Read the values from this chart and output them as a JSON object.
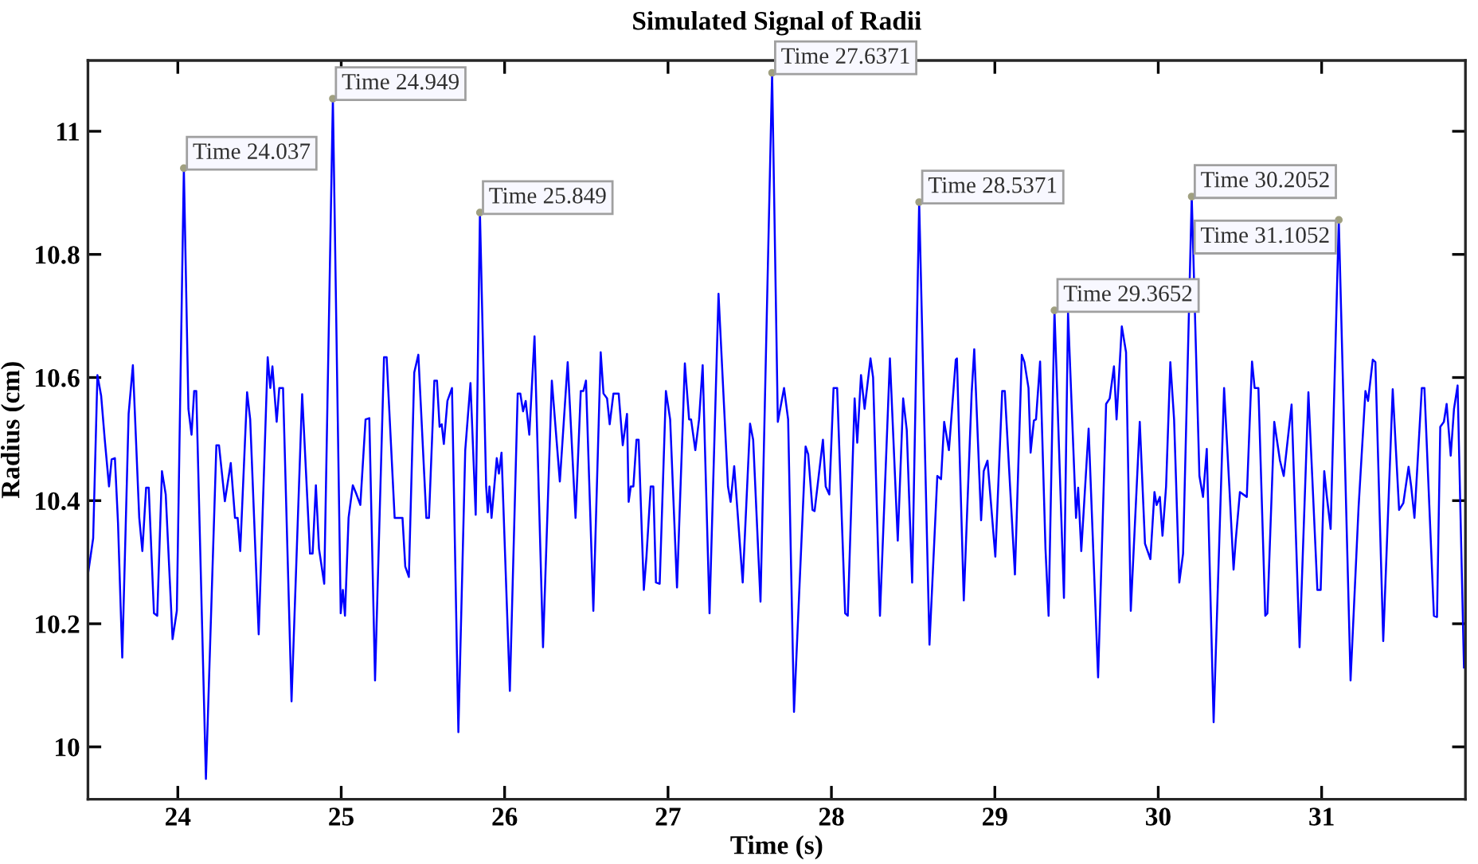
{
  "chart_data": {
    "type": "line",
    "title": "Simulated Signal of Radii",
    "xlabel": "Time (s)",
    "ylabel": "Radius (cm)",
    "xlim": [
      23.45,
      31.88
    ],
    "xticks": [
      24,
      25,
      26,
      27,
      28,
      29,
      30,
      31
    ],
    "ylim": [
      9.915,
      11.115
    ],
    "yticks": [
      10,
      10.2,
      10.4,
      10.6,
      10.8,
      11
    ],
    "grid": false,
    "marker": "none",
    "line_style": "solid",
    "series": [
      {
        "color": "#0000ff",
        "x": [
          23.45,
          23.482,
          23.508,
          23.531,
          23.553,
          23.579,
          23.595,
          23.615,
          23.634,
          23.66,
          23.699,
          23.725,
          23.764,
          23.783,
          23.806,
          23.822,
          23.854,
          23.874,
          23.903,
          23.926,
          23.968,
          23.994,
          24.037,
          24.065,
          24.084,
          24.1,
          24.113,
          24.172,
          24.236,
          24.252,
          24.288,
          24.324,
          24.35,
          24.366,
          24.382,
          24.424,
          24.443,
          24.495,
          24.55,
          24.566,
          24.579,
          24.605,
          24.621,
          24.644,
          24.696,
          24.761,
          24.809,
          24.825,
          24.845,
          24.864,
          24.896,
          24.949,
          24.997,
          25.01,
          25.023,
          25.045,
          25.071,
          25.091,
          25.117,
          25.149,
          25.172,
          25.207,
          25.262,
          25.278,
          25.327,
          25.375,
          25.392,
          25.414,
          25.447,
          25.472,
          25.521,
          25.537,
          25.57,
          25.586,
          25.602,
          25.615,
          25.628,
          25.65,
          25.678,
          25.717,
          25.759,
          25.791,
          25.823,
          25.849,
          25.887,
          25.897,
          25.907,
          25.92,
          25.952,
          25.965,
          25.981,
          26.032,
          26.08,
          26.096,
          26.113,
          26.129,
          26.151,
          26.183,
          26.235,
          26.289,
          26.338,
          26.386,
          26.434,
          26.466,
          26.482,
          26.498,
          26.543,
          26.588,
          26.605,
          26.627,
          26.643,
          26.666,
          26.698,
          26.723,
          26.749,
          26.759,
          26.772,
          26.788,
          26.807,
          26.82,
          26.852,
          26.868,
          26.894,
          26.91,
          26.926,
          26.949,
          26.987,
          27.013,
          27.055,
          27.103,
          27.129,
          27.141,
          27.167,
          27.19,
          27.212,
          27.254,
          27.309,
          27.367,
          27.383,
          27.405,
          27.457,
          27.502,
          27.521,
          27.566,
          27.637,
          27.672,
          27.71,
          27.735,
          27.771,
          27.842,
          27.858,
          27.884,
          27.897,
          27.948,
          27.965,
          27.987,
          28.013,
          28.035,
          28.084,
          28.1,
          28.142,
          28.158,
          28.181,
          28.203,
          28.239,
          28.255,
          28.297,
          28.358,
          28.406,
          28.439,
          28.461,
          28.494,
          28.537,
          28.6,
          28.648,
          28.671,
          28.69,
          28.719,
          28.761,
          28.768,
          28.81,
          28.858,
          28.874,
          28.916,
          28.932,
          28.955,
          29.003,
          29.045,
          29.061,
          29.123,
          29.165,
          29.181,
          29.206,
          29.219,
          29.239,
          29.252,
          29.277,
          29.31,
          29.329,
          29.365,
          29.423,
          29.448,
          29.497,
          29.51,
          29.529,
          29.574,
          29.632,
          29.681,
          29.703,
          29.729,
          29.745,
          29.777,
          29.803,
          29.832,
          29.887,
          29.919,
          29.952,
          29.977,
          29.99,
          30.01,
          30.026,
          30.048,
          30.074,
          30.097,
          30.129,
          30.152,
          30.205,
          30.252,
          30.274,
          30.297,
          30.339,
          30.403,
          30.435,
          30.461,
          30.474,
          30.5,
          30.542,
          30.574,
          30.59,
          30.613,
          30.655,
          30.668,
          30.71,
          30.745,
          30.768,
          30.816,
          30.865,
          30.919,
          30.974,
          30.994,
          31.016,
          31.032,
          31.055,
          31.105,
          31.177,
          31.226,
          31.268,
          31.284,
          31.313,
          31.329,
          31.377,
          31.435,
          31.474,
          31.5,
          31.532,
          31.548,
          31.568,
          31.613,
          31.629,
          31.687,
          31.706,
          31.726,
          31.748,
          31.765,
          31.79,
          31.81,
          31.832,
          31.871
        ],
        "values": [
          10.28,
          10.339,
          10.604,
          10.57,
          10.499,
          10.423,
          10.467,
          10.469,
          10.364,
          10.145,
          10.541,
          10.62,
          10.372,
          10.318,
          10.421,
          10.421,
          10.217,
          10.213,
          10.448,
          10.41,
          10.175,
          10.221,
          10.94,
          10.549,
          10.507,
          10.578,
          10.578,
          9.948,
          10.49,
          10.49,
          10.399,
          10.461,
          10.372,
          10.372,
          10.318,
          10.576,
          10.532,
          10.183,
          10.633,
          10.583,
          10.618,
          10.528,
          10.583,
          10.583,
          10.074,
          10.573,
          10.314,
          10.314,
          10.425,
          10.322,
          10.265,
          11.053,
          10.217,
          10.255,
          10.213,
          10.372,
          10.425,
          10.412,
          10.393,
          10.532,
          10.534,
          10.108,
          10.633,
          10.633,
          10.372,
          10.372,
          10.293,
          10.276,
          10.608,
          10.637,
          10.372,
          10.372,
          10.595,
          10.595,
          10.52,
          10.524,
          10.492,
          10.562,
          10.583,
          10.024,
          10.482,
          10.591,
          10.377,
          10.868,
          10.423,
          10.381,
          10.423,
          10.372,
          10.469,
          10.444,
          10.478,
          10.091,
          10.574,
          10.574,
          10.545,
          10.562,
          10.507,
          10.667,
          10.162,
          10.595,
          10.431,
          10.625,
          10.372,
          10.578,
          10.578,
          10.595,
          10.221,
          10.641,
          10.574,
          10.566,
          10.524,
          10.574,
          10.574,
          10.49,
          10.541,
          10.398,
          10.423,
          10.423,
          10.499,
          10.499,
          10.255,
          10.309,
          10.423,
          10.423,
          10.267,
          10.265,
          10.578,
          10.532,
          10.259,
          10.623,
          10.532,
          10.532,
          10.482,
          10.532,
          10.62,
          10.217,
          10.736,
          10.423,
          10.398,
          10.456,
          10.267,
          10.525,
          10.499,
          10.236,
          11.095,
          10.528,
          10.583,
          10.532,
          10.057,
          10.488,
          10.475,
          10.385,
          10.383,
          10.499,
          10.423,
          10.41,
          10.583,
          10.583,
          10.217,
          10.213,
          10.566,
          10.494,
          10.604,
          10.549,
          10.631,
          10.6,
          10.213,
          10.631,
          10.335,
          10.566,
          10.515,
          10.267,
          10.885,
          10.166,
          10.44,
          10.435,
          10.528,
          10.482,
          10.629,
          10.631,
          10.238,
          10.574,
          10.646,
          10.368,
          10.448,
          10.465,
          10.309,
          10.578,
          10.578,
          10.28,
          10.637,
          10.625,
          10.583,
          10.478,
          10.53,
          10.532,
          10.626,
          10.322,
          10.213,
          10.709,
          10.242,
          10.705,
          10.372,
          10.421,
          10.318,
          10.517,
          10.113,
          10.557,
          10.566,
          10.618,
          10.532,
          10.683,
          10.641,
          10.221,
          10.528,
          10.33,
          10.305,
          10.414,
          10.393,
          10.406,
          10.343,
          10.423,
          10.625,
          10.532,
          10.267,
          10.314,
          10.894,
          10.44,
          10.406,
          10.484,
          10.04,
          10.583,
          10.423,
          10.288,
          10.335,
          10.414,
          10.406,
          10.626,
          10.583,
          10.583,
          10.213,
          10.217,
          10.528,
          10.465,
          10.44,
          10.556,
          10.162,
          10.576,
          10.255,
          10.255,
          10.448,
          10.406,
          10.354,
          10.856,
          10.108,
          10.389,
          10.578,
          10.562,
          10.629,
          10.625,
          10.172,
          10.581,
          10.385,
          10.396,
          10.455,
          10.423,
          10.372,
          10.583,
          10.583,
          10.213,
          10.211,
          10.52,
          10.528,
          10.557,
          10.473,
          10.549,
          10.587,
          10.129
        ]
      }
    ],
    "annotations": [
      {
        "text": "Time 24.037",
        "x": 24.037,
        "y": 10.94
      },
      {
        "text": "Time 24.949",
        "x": 24.949,
        "y": 11.053
      },
      {
        "text": "Time 25.849",
        "x": 25.849,
        "y": 10.868
      },
      {
        "text": "Time 27.6371",
        "x": 27.637,
        "y": 11.095
      },
      {
        "text": "Time 28.5371",
        "x": 28.537,
        "y": 10.885
      },
      {
        "text": "Time 29.3652",
        "x": 29.365,
        "y": 10.709
      },
      {
        "text": "Time 30.2052",
        "x": 30.205,
        "y": 10.894
      },
      {
        "text": "Time 31.1052",
        "x": 31.105,
        "y": 10.856
      }
    ]
  }
}
